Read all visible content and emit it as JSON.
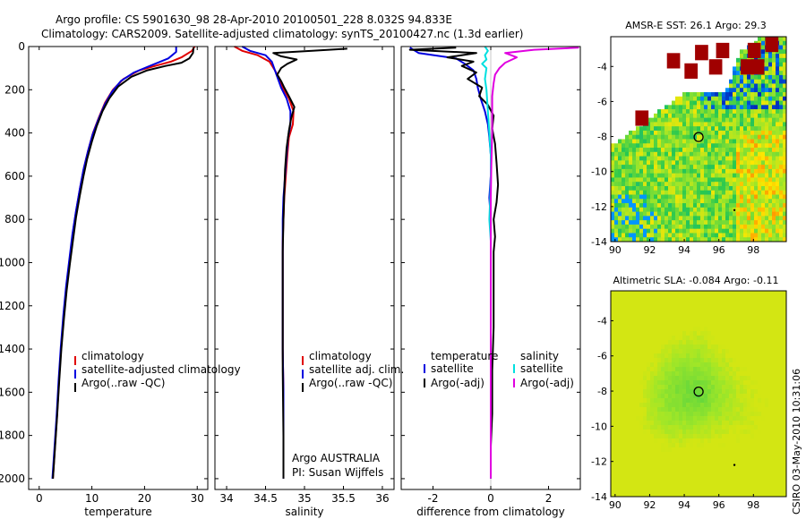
{
  "header": {
    "line1": "Argo profile: CS 5901630_98 28-Apr-2010 20100501_228 8.032S 94.833E",
    "line2": "Climatology: CARS2009. Satellite-adjusted climatology: synTS_20100427.nc (1.3d earlier)"
  },
  "chart_data": [
    {
      "type": "line",
      "id": "temperature",
      "xlabel": "temperature",
      "ylabel": "",
      "xlim": [
        -2,
        32
      ],
      "ylim": [
        0,
        2050
      ],
      "y_inverted": true,
      "xticks": [
        "0",
        "10",
        "20",
        "30"
      ],
      "xtick_values": [
        0,
        10,
        20,
        30
      ],
      "yticks": [
        "0",
        "200",
        "400",
        "600",
        "800",
        "1000",
        "1200",
        "1400",
        "1600",
        "1800",
        "2000"
      ],
      "ytick_values": [
        0,
        200,
        400,
        600,
        800,
        1000,
        1200,
        1400,
        1600,
        1800,
        2000
      ],
      "legend": [
        "climatology",
        "satellite-adjusted climatology",
        "Argo(..raw -QC)"
      ],
      "series": [
        {
          "name": "climatology",
          "color": "#e00000",
          "points": [
            [
              29.5,
              0
            ],
            [
              29,
              20
            ],
            [
              27,
              50
            ],
            [
              25,
              70
            ],
            [
              22,
              90
            ],
            [
              19,
              110
            ],
            [
              16,
              150
            ],
            [
              14,
              200
            ],
            [
              12.5,
              260
            ],
            [
              11.3,
              330
            ],
            [
              10.2,
              400
            ],
            [
              9.3,
              480
            ],
            [
              8.5,
              560
            ],
            [
              7.8,
              650
            ],
            [
              7.1,
              750
            ],
            [
              6.4,
              860
            ],
            [
              5.8,
              980
            ],
            [
              5.2,
              1100
            ],
            [
              4.7,
              1230
            ],
            [
              4.2,
              1380
            ],
            [
              3.8,
              1530
            ],
            [
              3.4,
              1700
            ],
            [
              3.0,
              1850
            ],
            [
              2.6,
              2000
            ]
          ]
        },
        {
          "name": "satellite-adjusted climatology",
          "color": "#0000e0",
          "points": [
            [
              26,
              0
            ],
            [
              26,
              25
            ],
            [
              24.5,
              55
            ],
            [
              21,
              90
            ],
            [
              18,
              120
            ],
            [
              15.5,
              160
            ],
            [
              13.8,
              210
            ],
            [
              12.4,
              270
            ],
            [
              11.2,
              340
            ],
            [
              10.1,
              410
            ],
            [
              9.2,
              490
            ],
            [
              8.4,
              570
            ],
            [
              7.7,
              660
            ],
            [
              7.0,
              760
            ],
            [
              6.3,
              870
            ],
            [
              5.7,
              990
            ],
            [
              5.1,
              1110
            ],
            [
              4.6,
              1240
            ],
            [
              4.1,
              1390
            ],
            [
              3.7,
              1540
            ],
            [
              3.3,
              1710
            ],
            [
              2.9,
              1860
            ],
            [
              2.5,
              2000
            ]
          ]
        },
        {
          "name": "Argo(..raw -QC)",
          "color": "#000000",
          "points": [
            [
              29.3,
              5
            ],
            [
              29.2,
              30
            ],
            [
              28.5,
              55
            ],
            [
              27,
              75
            ],
            [
              24,
              90
            ],
            [
              20.5,
              110
            ],
            [
              17.5,
              140
            ],
            [
              15,
              185
            ],
            [
              13.3,
              240
            ],
            [
              12,
              300
            ],
            [
              10.9,
              370
            ],
            [
              10,
              440
            ],
            [
              9.1,
              520
            ],
            [
              8.4,
              600
            ],
            [
              7.7,
              690
            ],
            [
              7,
              790
            ],
            [
              6.4,
              900
            ],
            [
              5.8,
              1010
            ],
            [
              5.2,
              1130
            ],
            [
              4.7,
              1260
            ],
            [
              4.2,
              1400
            ],
            [
              3.8,
              1550
            ],
            [
              3.4,
              1710
            ],
            [
              3,
              1860
            ],
            [
              2.6,
              2000
            ]
          ]
        }
      ]
    },
    {
      "type": "line",
      "id": "salinity",
      "xlabel": "salinity",
      "xlim": [
        33.85,
        36.15
      ],
      "ylim": [
        0,
        2050
      ],
      "y_inverted": true,
      "xticks": [
        "34",
        "34.5",
        "35",
        "35.5",
        "36"
      ],
      "xtick_values": [
        34,
        34.5,
        35,
        35.5,
        36
      ],
      "legend": [
        "climatology",
        "satellite adj. clim.",
        "Argo(..raw -QC)"
      ],
      "annotations": [
        "Argo AUSTRALIA",
        "PI: Susan Wijffels"
      ],
      "series": [
        {
          "name": "climatology",
          "color": "#e00000",
          "points": [
            [
              34.1,
              0
            ],
            [
              34.2,
              20
            ],
            [
              34.4,
              40
            ],
            [
              34.55,
              70
            ],
            [
              34.62,
              110
            ],
            [
              34.68,
              150
            ],
            [
              34.72,
              190
            ],
            [
              34.8,
              240
            ],
            [
              34.86,
              300
            ],
            [
              34.85,
              360
            ],
            [
              34.8,
              420
            ],
            [
              34.78,
              500
            ],
            [
              34.76,
              600
            ],
            [
              34.74,
              700
            ],
            [
              34.73,
              800
            ],
            [
              34.72,
              900
            ],
            [
              34.72,
              1000
            ],
            [
              34.72,
              1200
            ],
            [
              34.72,
              1400
            ],
            [
              34.73,
              1600
            ],
            [
              34.73,
              1800
            ],
            [
              34.73,
              2000
            ]
          ]
        },
        {
          "name": "satellite adj. clim.",
          "color": "#0000e0",
          "points": [
            [
              34.2,
              0
            ],
            [
              34.3,
              20
            ],
            [
              34.5,
              40
            ],
            [
              34.58,
              70
            ],
            [
              34.62,
              110
            ],
            [
              34.66,
              150
            ],
            [
              34.7,
              190
            ],
            [
              34.77,
              240
            ],
            [
              34.82,
              300
            ],
            [
              34.82,
              360
            ],
            [
              34.79,
              420
            ],
            [
              34.77,
              500
            ],
            [
              34.75,
              600
            ],
            [
              34.73,
              700
            ],
            [
              34.72,
              800
            ],
            [
              34.72,
              900
            ],
            [
              34.72,
              1000
            ],
            [
              34.72,
              1200
            ],
            [
              34.72,
              1400
            ],
            [
              34.73,
              1600
            ],
            [
              34.73,
              1800
            ],
            [
              34.73,
              2000
            ]
          ]
        },
        {
          "name": "Argo(..raw -QC)",
          "color": "#000000",
          "points": [
            [
              35.55,
              10
            ],
            [
              35.1,
              20
            ],
            [
              34.6,
              30
            ],
            [
              34.7,
              45
            ],
            [
              34.9,
              60
            ],
            [
              34.78,
              80
            ],
            [
              34.7,
              100
            ],
            [
              34.65,
              130
            ],
            [
              34.7,
              160
            ],
            [
              34.74,
              190
            ],
            [
              34.8,
              230
            ],
            [
              34.87,
              280
            ],
            [
              34.83,
              330
            ],
            [
              34.8,
              390
            ],
            [
              34.77,
              470
            ],
            [
              34.75,
              570
            ],
            [
              34.74,
              680
            ],
            [
              34.73,
              800
            ],
            [
              34.72,
              950
            ],
            [
              34.72,
              1200
            ],
            [
              34.72,
              1500
            ],
            [
              34.73,
              1800
            ],
            [
              34.73,
              2000
            ]
          ]
        }
      ]
    },
    {
      "type": "line",
      "id": "difference",
      "xlabel": "difference from climatology",
      "xlim": [
        -3.1,
        3.1
      ],
      "ylim": [
        0,
        2050
      ],
      "y_inverted": true,
      "xticks": [
        "-2",
        "0",
        "2"
      ],
      "xtick_values": [
        -2,
        0,
        2
      ],
      "legend_left_title": "temperature",
      "legend_left": [
        "satellite",
        "Argo(-adj)"
      ],
      "legend_right_title": "salinity",
      "legend_right": [
        "satellite",
        "Argo(-adj)"
      ],
      "series": [
        {
          "name": "temperature satellite",
          "color": "#0000e0",
          "points": [
            [
              -2.8,
              5
            ],
            [
              -2.5,
              30
            ],
            [
              -1.2,
              55
            ],
            [
              -0.9,
              80
            ],
            [
              -0.6,
              110
            ],
            [
              -0.5,
              150
            ],
            [
              -0.45,
              190
            ],
            [
              -0.35,
              240
            ],
            [
              -0.2,
              300
            ],
            [
              -0.1,
              360
            ],
            [
              -0.05,
              420
            ],
            [
              0,
              500
            ],
            [
              0,
              600
            ],
            [
              -0.05,
              700
            ],
            [
              0,
              800
            ],
            [
              0,
              900
            ],
            [
              0,
              1000
            ],
            [
              0,
              1200
            ],
            [
              0,
              1400
            ],
            [
              0,
              1600
            ],
            [
              0,
              1800
            ],
            [
              0,
              2000
            ]
          ]
        },
        {
          "name": "temperature Argo(-adj)",
          "color": "#000000",
          "points": [
            [
              -1.2,
              5
            ],
            [
              -2.8,
              15
            ],
            [
              -0.5,
              30
            ],
            [
              -1.5,
              50
            ],
            [
              -0.6,
              70
            ],
            [
              -1,
              90
            ],
            [
              -0.5,
              120
            ],
            [
              -0.8,
              150
            ],
            [
              -0.3,
              190
            ],
            [
              -0.4,
              230
            ],
            [
              -0.1,
              270
            ],
            [
              0.1,
              320
            ],
            [
              0.05,
              380
            ],
            [
              0.15,
              450
            ],
            [
              0.2,
              540
            ],
            [
              0.25,
              640
            ],
            [
              0.2,
              720
            ],
            [
              0.1,
              800
            ],
            [
              0.15,
              880
            ],
            [
              0.1,
              950
            ],
            [
              0.1,
              1100
            ],
            [
              0.1,
              1300
            ],
            [
              0.05,
              1500
            ],
            [
              0.05,
              1700
            ],
            [
              0,
              1850
            ],
            [
              0,
              2000
            ]
          ]
        },
        {
          "name": "salinity satellite",
          "color": "#00e0e0",
          "points": [
            [
              -0.2,
              0
            ],
            [
              -0.1,
              20
            ],
            [
              -0.2,
              40
            ],
            [
              -0.15,
              60
            ],
            [
              -0.3,
              80
            ],
            [
              -0.15,
              100
            ],
            [
              -0.2,
              150
            ],
            [
              -0.15,
              200
            ],
            [
              -0.1,
              300
            ],
            [
              -0.05,
              400
            ],
            [
              0,
              500
            ],
            [
              0,
              600
            ],
            [
              -0.02,
              700
            ],
            [
              -0.05,
              800
            ],
            [
              0,
              900
            ],
            [
              0,
              1200
            ],
            [
              0,
              1500
            ],
            [
              0,
              1800
            ],
            [
              0,
              2000
            ]
          ]
        },
        {
          "name": "salinity Argo(-adj)",
          "color": "#e000e0",
          "points": [
            [
              3.05,
              5
            ],
            [
              1.5,
              15
            ],
            [
              0.5,
              30
            ],
            [
              0.9,
              50
            ],
            [
              0.5,
              75
            ],
            [
              0.3,
              100
            ],
            [
              0.15,
              130
            ],
            [
              0.1,
              170
            ],
            [
              0.05,
              230
            ],
            [
              0.05,
              300
            ],
            [
              0.05,
              400
            ],
            [
              0.02,
              550
            ],
            [
              0,
              700
            ],
            [
              0,
              1000
            ],
            [
              0,
              1300
            ],
            [
              0,
              1600
            ],
            [
              0,
              2000
            ]
          ]
        }
      ]
    },
    {
      "type": "heatmap",
      "id": "sst-map",
      "title": "AMSR-E SST: 26.1 Argo: 29.3",
      "xlim": [
        89.75,
        99.9
      ],
      "ylim": [
        -14,
        -2.3
      ],
      "xticks": [
        "90",
        "92",
        "94",
        "96",
        "98"
      ],
      "xtick_values": [
        90,
        92,
        94,
        96,
        98
      ],
      "yticks": [
        "-4",
        "-6",
        "-8",
        "-10",
        "-12",
        "-14"
      ],
      "ytick_values": [
        -4,
        -6,
        -8,
        -10,
        -12,
        -14
      ],
      "argo_position": [
        94.83,
        -8.03
      ]
    },
    {
      "type": "heatmap",
      "id": "sla-map",
      "title": "Altimetric SLA: -0.084 Argo: -0.11",
      "xlim": [
        89.75,
        99.9
      ],
      "ylim": [
        -14,
        -2.3
      ],
      "xticks": [
        "90",
        "92",
        "94",
        "96",
        "98"
      ],
      "xtick_values": [
        90,
        92,
        94,
        96,
        98
      ],
      "yticks": [
        "-4",
        "-6",
        "-8",
        "-10",
        "-12",
        "-14"
      ],
      "ytick_values": [
        -4,
        -6,
        -8,
        -10,
        -12,
        -14
      ],
      "argo_position": [
        94.83,
        -8.03
      ]
    }
  ],
  "footer": {
    "stamp": "CSIRO 03-May-2010 10:31:06"
  }
}
